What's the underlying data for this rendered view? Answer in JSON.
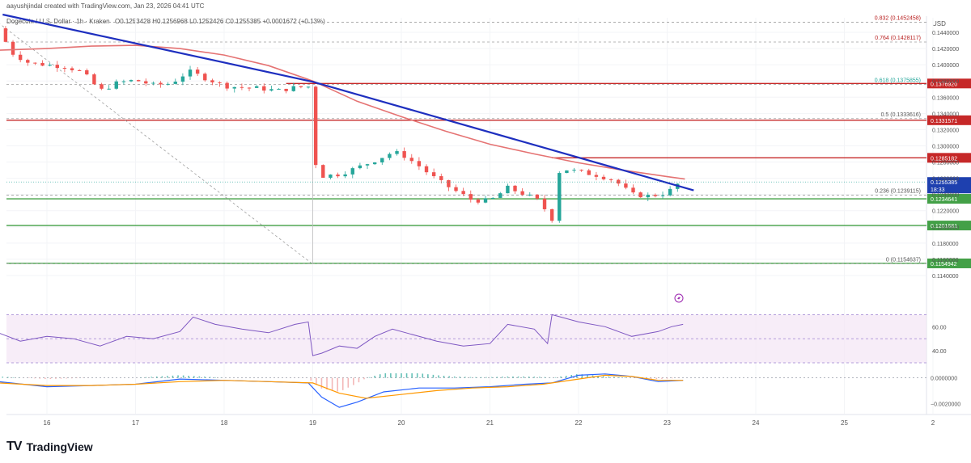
{
  "header": {
    "byline": "aayushjindal created with TradingView.com, Jan 23, 2026 04:41 UTC",
    "symbol_line": "Dogecoin / U.S. Dollar · 1h · Kraken",
    "ohlc": "O0.1253428  H0.1256968  L0.1252426  C0.1255385  +0.0001672 (+0.13%)"
  },
  "axis": {
    "currency": "USD"
  },
  "brand": {
    "logo": "TV",
    "name": "TradingView"
  },
  "chart_data": {
    "type": "candlestick",
    "title": "Dogecoin / U.S. Dollar · 1h · Kraken",
    "ylabel": "USD",
    "ylim": [
      0.1125,
      0.1458
    ],
    "x_ticks": [
      "16",
      "17",
      "18",
      "19",
      "20",
      "21",
      "22",
      "23",
      "24",
      "25",
      "2"
    ],
    "y_ticks": [
      "0.1440000",
      "0.1420000",
      "0.1400000",
      "0.1380000",
      "0.1360000",
      "0.1340000",
      "0.1320000",
      "0.1300000",
      "0.1280000",
      "0.1260000",
      "0.1240000",
      "0.1220000",
      "0.1200000",
      "0.1180000",
      "0.1160000",
      "0.1140000"
    ],
    "price_path": [
      [
        15.45,
        0.1445
      ],
      [
        15.6,
        0.1415
      ],
      [
        15.8,
        0.1402
      ],
      [
        16.0,
        0.14
      ],
      [
        16.2,
        0.1398
      ],
      [
        16.4,
        0.1391
      ],
      [
        16.6,
        0.1368
      ],
      [
        16.8,
        0.1378
      ],
      [
        17.0,
        0.1381
      ],
      [
        17.2,
        0.1375
      ],
      [
        17.4,
        0.1377
      ],
      [
        17.6,
        0.1392
      ],
      [
        17.8,
        0.1383
      ],
      [
        18.0,
        0.1374
      ],
      [
        18.2,
        0.1372
      ],
      [
        18.4,
        0.1371
      ],
      [
        18.6,
        0.1368
      ],
      [
        18.8,
        0.1372
      ],
      [
        18.95,
        0.1373
      ],
      [
        19.0,
        0.131
      ],
      [
        19.05,
        0.1262
      ],
      [
        19.3,
        0.1265
      ],
      [
        19.5,
        0.1273
      ],
      [
        19.7,
        0.1282
      ],
      [
        19.9,
        0.1292
      ],
      [
        20.0,
        0.129
      ],
      [
        20.2,
        0.1275
      ],
      [
        20.4,
        0.1258
      ],
      [
        20.6,
        0.1245
      ],
      [
        20.8,
        0.1233
      ],
      [
        21.0,
        0.1232
      ],
      [
        21.2,
        0.1248
      ],
      [
        21.4,
        0.124
      ],
      [
        21.55,
        0.1232
      ],
      [
        21.7,
        0.121
      ],
      [
        21.75,
        0.126
      ],
      [
        21.8,
        0.1272
      ],
      [
        22.0,
        0.1268
      ],
      [
        22.2,
        0.1264
      ],
      [
        22.4,
        0.1258
      ],
      [
        22.6,
        0.124
      ],
      [
        22.8,
        0.1238
      ],
      [
        23.0,
        0.1242
      ],
      [
        23.12,
        0.1253
      ],
      [
        23.18,
        0.1255
      ]
    ],
    "series": [
      {
        "name": "moving_average",
        "points": [
          [
            15.45,
            0.1418
          ],
          [
            16.0,
            0.142
          ],
          [
            16.5,
            0.1423
          ],
          [
            17.0,
            0.1424
          ],
          [
            17.5,
            0.142
          ],
          [
            18.0,
            0.1412
          ],
          [
            18.5,
            0.1399
          ],
          [
            19.0,
            0.138
          ],
          [
            19.5,
            0.1355
          ],
          [
            20.0,
            0.1336
          ],
          [
            20.5,
            0.1318
          ],
          [
            21.0,
            0.1302
          ],
          [
            21.5,
            0.129
          ],
          [
            22.0,
            0.1279
          ],
          [
            22.5,
            0.127
          ],
          [
            23.0,
            0.1262
          ],
          [
            23.2,
            0.1259
          ]
        ]
      },
      {
        "name": "bearish_trend_line",
        "points": [
          [
            15.5,
            0.1462
          ],
          [
            19.0,
            0.1379
          ],
          [
            23.3,
            0.1245
          ]
        ]
      }
    ],
    "levels": [
      {
        "label": "0.1376920",
        "value": 0.137692,
        "kind": "resistance"
      },
      {
        "label": "0.1331571",
        "value": 0.1331571,
        "kind": "resistance"
      },
      {
        "label": "0.1285182",
        "value": 0.1285182,
        "kind": "resistance"
      },
      {
        "label": "0.1234641",
        "value": 0.1234641,
        "kind": "support"
      },
      {
        "label": "0.1201681",
        "value": 0.1201681,
        "kind": "support"
      },
      {
        "label": "0.1154942",
        "value": 0.1154942,
        "kind": "support"
      }
    ],
    "fib_levels": [
      {
        "label": "0.832 (0.1452458)",
        "value": 0.1452458,
        "color": "#b71c1c"
      },
      {
        "label": "0.764 (0.1428117)",
        "value": 0.1428117,
        "color": "#b71c1c"
      },
      {
        "label": "0.618 (0.1375855)",
        "value": 0.1375855,
        "color": "#26a69a"
      },
      {
        "label": "0.5 (0.1333616)",
        "value": 0.1333616,
        "color": "#555555"
      },
      {
        "label": "0.236 (0.1239115)",
        "value": 0.1239115,
        "color": "#555555"
      },
      {
        "label": "0 (0.1154637)",
        "value": 0.1154637,
        "color": "#555555"
      }
    ],
    "current_price": {
      "label": "0.1255385",
      "countdown": "18:33",
      "value": 0.1255385
    },
    "rsi": {
      "ylim": [
        28,
        75
      ],
      "ticks": [
        "60.00",
        "40.00"
      ],
      "points": [
        [
          15.45,
          55
        ],
        [
          15.7,
          48
        ],
        [
          16.0,
          52
        ],
        [
          16.3,
          50
        ],
        [
          16.6,
          44
        ],
        [
          16.9,
          52
        ],
        [
          17.2,
          50
        ],
        [
          17.5,
          56
        ],
        [
          17.65,
          68
        ],
        [
          17.9,
          62
        ],
        [
          18.2,
          58
        ],
        [
          18.5,
          55
        ],
        [
          18.8,
          62
        ],
        [
          18.95,
          64
        ],
        [
          19.0,
          36
        ],
        [
          19.1,
          38
        ],
        [
          19.3,
          44
        ],
        [
          19.5,
          42
        ],
        [
          19.7,
          52
        ],
        [
          19.9,
          58
        ],
        [
          20.1,
          54
        ],
        [
          20.4,
          48
        ],
        [
          20.7,
          44
        ],
        [
          21.0,
          46
        ],
        [
          21.2,
          62
        ],
        [
          21.5,
          58
        ],
        [
          21.65,
          46
        ],
        [
          21.7,
          70
        ],
        [
          22.0,
          64
        ],
        [
          22.3,
          60
        ],
        [
          22.6,
          52
        ],
        [
          22.9,
          56
        ],
        [
          23.05,
          60
        ],
        [
          23.18,
          62
        ]
      ]
    },
    "macd": {
      "ylim": [
        -0.0028,
        0.0006
      ],
      "ticks": [
        "0.0000000",
        "−0.0020000"
      ],
      "macd_line": [
        [
          15.45,
          -0.0003
        ],
        [
          16.0,
          -0.0007
        ],
        [
          16.5,
          -0.0006
        ],
        [
          17.0,
          -0.0005
        ],
        [
          17.5,
          -0.0001
        ],
        [
          18.0,
          -0.0002
        ],
        [
          18.5,
          -0.0003
        ],
        [
          18.95,
          -0.0004
        ],
        [
          19.1,
          -0.0015
        ],
        [
          19.3,
          -0.0023
        ],
        [
          19.5,
          -0.0019
        ],
        [
          19.8,
          -0.0011
        ],
        [
          20.2,
          -0.0008
        ],
        [
          20.6,
          -0.0008
        ],
        [
          21.0,
          -0.0007
        ],
        [
          21.4,
          -0.0005
        ],
        [
          21.7,
          -0.0004
        ],
        [
          22.0,
          0.0002
        ],
        [
          22.3,
          0.0003
        ],
        [
          22.6,
          0.0001
        ],
        [
          22.9,
          -0.0003
        ],
        [
          23.18,
          -0.0002
        ]
      ],
      "signal_line": [
        [
          15.45,
          -0.0004
        ],
        [
          16.0,
          -0.0006
        ],
        [
          16.5,
          -0.0006
        ],
        [
          17.0,
          -0.0005
        ],
        [
          17.5,
          -0.0003
        ],
        [
          18.0,
          -0.0002
        ],
        [
          18.5,
          -0.0003
        ],
        [
          19.0,
          -0.0004
        ],
        [
          19.3,
          -0.0012
        ],
        [
          19.6,
          -0.0016
        ],
        [
          20.0,
          -0.0013
        ],
        [
          20.4,
          -0.001
        ],
        [
          20.8,
          -0.0008
        ],
        [
          21.2,
          -0.0007
        ],
        [
          21.6,
          -0.0005
        ],
        [
          22.0,
          -0.0001
        ],
        [
          22.3,
          0.0002
        ],
        [
          22.6,
          0.0001
        ],
        [
          22.9,
          -0.0002
        ],
        [
          23.18,
          -0.0002
        ]
      ]
    }
  }
}
